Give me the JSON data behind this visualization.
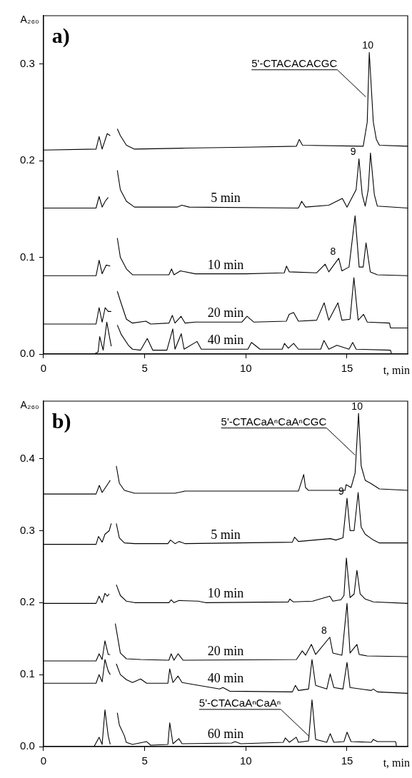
{
  "chart_data": [
    {
      "type": "line",
      "title": "a)",
      "xlabel": "t, min",
      "ylabel": "A₂₆₀",
      "xlim": [
        0,
        18
      ],
      "ylim": [
        0,
        0.35
      ],
      "xticks": [
        0,
        5,
        10,
        15
      ],
      "yticks": [
        {
          "value": 0,
          "label": "0.0"
        },
        0.1,
        0.2,
        0.3
      ],
      "grid": false,
      "legend": false,
      "marker": "none",
      "line_style": "solid",
      "annotations": [
        {
          "text": "5'-CTACACACGC",
          "x": 15.93,
          "y": 0.266
        },
        {
          "text": "10",
          "x": 16.1,
          "y": 0.312
        },
        {
          "text": "9",
          "x": 15.59,
          "y": 0.202
        },
        {
          "text": "8",
          "x": 14.59,
          "y": 0.099
        }
      ],
      "series": [
        {
          "color": "#000000",
          "x": [
            0,
            2.6,
            2.75,
            2.9,
            3.15,
            3.3,
            3.45,
            3.55,
            3.65,
            3.8,
            4.1,
            4.5,
            7,
            10,
            12.5,
            12.64,
            12.8,
            15.8,
            16.0,
            16.1,
            16.3,
            16.45,
            16.6,
            18
          ],
          "values": [
            0.211,
            0.212,
            0.225,
            0.212,
            0.228,
            0.226,
            null,
            null,
            0.233,
            0.226,
            0.216,
            0.212,
            0.213,
            0.214,
            0.215,
            0.222,
            0.216,
            0.215,
            0.24,
            0.312,
            0.24,
            0.222,
            0.216,
            0.215
          ]
        },
        {
          "name": "5 min",
          "color": "#000000",
          "x": [
            0,
            2.6,
            2.75,
            2.9,
            3.05,
            3.2,
            3.45,
            3.55,
            3.65,
            3.8,
            4.1,
            4.5,
            6.6,
            6.84,
            7.2,
            12.6,
            12.76,
            12.95,
            14.1,
            14.77,
            15.0,
            15.45,
            15.59,
            15.75,
            15.9,
            16.05,
            16.16,
            16.35,
            16.5,
            18
          ],
          "values": [
            0.151,
            0.151,
            0.163,
            0.152,
            0.158,
            0.162,
            null,
            null,
            0.19,
            0.17,
            0.158,
            0.152,
            0.152,
            0.154,
            0.152,
            0.151,
            0.158,
            0.152,
            0.154,
            0.161,
            0.152,
            0.17,
            0.202,
            0.165,
            0.153,
            0.17,
            0.208,
            0.165,
            0.153,
            0.151
          ]
        },
        {
          "name": "10 min",
          "color": "#000000",
          "x": [
            0,
            2.6,
            2.75,
            2.9,
            3.1,
            3.3,
            3.45,
            3.55,
            3.65,
            3.8,
            4.1,
            4.4,
            6.2,
            6.33,
            6.45,
            6.77,
            7.5,
            10,
            11.9,
            12.01,
            12.15,
            13.5,
            13.92,
            14.1,
            14.59,
            14.75,
            15.1,
            15.4,
            15.6,
            15.8,
            15.94,
            16.15,
            16.5,
            18
          ],
          "values": [
            0.081,
            0.081,
            0.097,
            0.083,
            0.092,
            0.091,
            null,
            null,
            0.12,
            0.1,
            0.088,
            0.082,
            0.082,
            0.088,
            0.082,
            0.086,
            0.083,
            0.083,
            0.084,
            0.091,
            0.085,
            0.084,
            0.093,
            0.085,
            0.099,
            0.086,
            0.09,
            0.143,
            0.09,
            0.09,
            0.115,
            0.085,
            0.082,
            0.081
          ]
        },
        {
          "name": "20 min",
          "color": "#000000",
          "x": [
            0,
            2.6,
            2.75,
            2.9,
            3.05,
            3.2,
            3.35,
            3.45,
            3.55,
            3.65,
            3.8,
            4.1,
            4.4,
            5.06,
            5.3,
            6.2,
            6.37,
            6.5,
            6.8,
            7.0,
            7.5,
            9.8,
            10.06,
            10.4,
            12.0,
            12.14,
            12.36,
            12.6,
            13.5,
            13.87,
            14.1,
            14.55,
            14.75,
            15.15,
            15.34,
            15.55,
            15.82,
            16.0,
            17.1,
            17.15,
            18
          ],
          "values": [
            0.031,
            0.031,
            0.048,
            0.033,
            0.048,
            0.044,
            0.044,
            null,
            null,
            0.065,
            0.055,
            0.036,
            0.032,
            0.034,
            0.031,
            0.032,
            0.04,
            0.032,
            0.039,
            0.032,
            0.033,
            0.033,
            0.039,
            0.033,
            0.034,
            0.041,
            0.043,
            0.034,
            0.035,
            0.053,
            0.035,
            0.053,
            0.035,
            0.036,
            0.079,
            0.035,
            0.041,
            0.033,
            0.032,
            0.027,
            0.027
          ]
        },
        {
          "name": "40 min",
          "color": "#000000",
          "x": [
            0,
            2.5,
            2.7,
            2.78,
            2.95,
            3.13,
            3.35,
            3.45,
            3.55,
            3.65,
            3.85,
            4.2,
            4.4,
            4.8,
            5.13,
            5.4,
            6.1,
            6.39,
            6.5,
            6.81,
            6.95,
            7.59,
            7.8,
            10.1,
            10.28,
            10.7,
            11.8,
            11.91,
            12.1,
            12.36,
            12.6,
            13.7,
            13.86,
            14.1,
            14.5,
            15.1,
            15.28,
            15.45,
            17.15,
            17.2,
            18
          ],
          "values": [
            0,
            0,
            0.002,
            0.018,
            0.004,
            0.033,
            0.008,
            null,
            null,
            0.03,
            0.02,
            0.009,
            0.005,
            0.004,
            0.016,
            0.004,
            0.004,
            0.026,
            0.005,
            0.021,
            0.005,
            0.013,
            0.005,
            0.005,
            0.012,
            0.005,
            0.005,
            0.011,
            0.006,
            0.011,
            0.005,
            0.005,
            0.014,
            0.005,
            0.009,
            0.005,
            0.012,
            0.005,
            0.004,
            0,
            0
          ]
        }
      ]
    },
    {
      "type": "line",
      "title": "b)",
      "xlabel": "t, min",
      "ylabel": "A₂₆₀",
      "xlim": [
        0,
        18
      ],
      "ylim": [
        0,
        0.48
      ],
      "xticks": [
        0,
        5,
        10,
        15
      ],
      "yticks": [
        {
          "value": 0,
          "label": "0.0"
        },
        0.1,
        0.2,
        0.3,
        0.4
      ],
      "grid": false,
      "legend": false,
      "marker": "none",
      "line_style": "solid",
      "annotations": [
        {
          "text": "5'-CTACaAⁿCaAⁿCGC",
          "x": 15.4,
          "y": 0.405
        },
        {
          "text": "5'-CTACaAⁿCaAⁿ",
          "x": 13.14,
          "y": 0.014
        },
        {
          "text": "10",
          "x": 15.57,
          "y": 0.463
        },
        {
          "text": "9",
          "x": 15.0,
          "y": 0.345
        },
        {
          "text": "8",
          "x": 14.15,
          "y": 0.152
        }
      ],
      "series": [
        {
          "color": "#000000",
          "x": [
            0,
            2.6,
            2.76,
            2.9,
            3.23,
            3.3,
            3.4,
            3.5,
            3.6,
            3.75,
            4.0,
            4.5,
            6.5,
            7.0,
            12.6,
            12.86,
            12.95,
            13.1,
            14.9,
            14.96,
            15.2,
            15.4,
            15.57,
            15.7,
            15.9,
            16.16,
            16.6,
            18
          ],
          "values": [
            0.351,
            0.351,
            0.363,
            0.353,
            0.367,
            0.37,
            null,
            null,
            0.39,
            0.366,
            0.356,
            0.352,
            0.352,
            0.355,
            0.355,
            0.378,
            0.36,
            0.356,
            0.356,
            0.364,
            0.36,
            0.38,
            0.463,
            0.39,
            0.37,
            0.366,
            0.358,
            0.356
          ]
        },
        {
          "name": "5 min",
          "color": "#000000",
          "x": [
            0,
            2.6,
            2.72,
            2.9,
            3.04,
            3.25,
            3.35,
            3.4,
            3.5,
            3.6,
            3.75,
            4.0,
            4.5,
            6.15,
            6.28,
            6.5,
            6.7,
            7.0,
            12.3,
            12.41,
            12.6,
            14.17,
            14.45,
            14.8,
            15.0,
            15.15,
            15.35,
            15.55,
            15.7,
            15.9,
            16.3,
            16.6,
            18
          ],
          "values": [
            0.281,
            0.281,
            0.292,
            0.284,
            0.295,
            0.3,
            0.31,
            null,
            null,
            0.31,
            0.29,
            0.283,
            0.282,
            0.282,
            0.287,
            0.282,
            0.285,
            0.282,
            0.284,
            0.291,
            0.285,
            0.289,
            0.287,
            0.29,
            0.345,
            0.3,
            0.3,
            0.353,
            0.305,
            0.295,
            0.287,
            0.283,
            0.283
          ]
        },
        {
          "name": "10 min",
          "color": "#000000",
          "x": [
            0,
            2.6,
            2.75,
            2.9,
            3.04,
            3.15,
            3.25,
            3.4,
            3.5,
            3.6,
            3.8,
            4.1,
            4.5,
            6.2,
            6.31,
            6.45,
            6.7,
            7.65,
            8.0,
            12.1,
            12.17,
            12.35,
            13.3,
            14.15,
            14.3,
            14.7,
            14.85,
            14.97,
            15.15,
            15.35,
            15.49,
            15.65,
            15.9,
            16.3,
            18
          ],
          "values": [
            0.199,
            0.199,
            0.209,
            0.2,
            0.213,
            0.209,
            0.212,
            null,
            null,
            0.225,
            0.21,
            0.202,
            0.2,
            0.2,
            0.204,
            0.2,
            0.203,
            0.202,
            0.2,
            0.201,
            0.205,
            0.201,
            0.202,
            0.209,
            0.202,
            0.204,
            0.21,
            0.262,
            0.207,
            0.212,
            0.245,
            0.212,
            0.205,
            0.201,
            0.199
          ]
        },
        {
          "name": "20 min",
          "color": "#000000",
          "x": [
            0,
            2.6,
            2.75,
            2.9,
            3.04,
            3.2,
            3.3,
            3.4,
            3.5,
            3.55,
            3.8,
            4.1,
            4.8,
            6.2,
            6.31,
            6.45,
            6.65,
            6.9,
            12.5,
            12.79,
            12.95,
            13.24,
            13.45,
            14.15,
            14.3,
            14.75,
            15.0,
            15.15,
            15.49,
            15.6,
            16.0,
            18
          ],
          "values": [
            0.119,
            0.119,
            0.129,
            0.121,
            0.147,
            0.128,
            0.128,
            null,
            null,
            0.171,
            0.13,
            0.122,
            0.121,
            0.12,
            0.129,
            0.12,
            0.129,
            0.12,
            0.121,
            0.133,
            0.127,
            0.142,
            0.128,
            0.152,
            0.13,
            0.127,
            0.199,
            0.13,
            0.142,
            0.128,
            0.126,
            0.125
          ]
        },
        {
          "name": "40 min",
          "color": "#000000",
          "x": [
            0,
            2.6,
            2.75,
            2.9,
            3.04,
            3.2,
            3.3,
            3.4,
            3.5,
            3.6,
            3.8,
            4.1,
            4.4,
            4.8,
            5.1,
            6.15,
            6.24,
            6.4,
            6.65,
            6.85,
            8.7,
            8.87,
            9.2,
            12.3,
            12.45,
            12.6,
            13.1,
            13.27,
            13.45,
            14.0,
            14.17,
            14.35,
            14.8,
            15.0,
            15.15,
            16.2,
            16.3,
            16.5,
            18
          ],
          "values": [
            0.088,
            0.088,
            0.1,
            0.09,
            0.121,
            0.105,
            0.1,
            null,
            null,
            0.115,
            0.1,
            0.093,
            0.089,
            0.094,
            0.088,
            0.088,
            0.108,
            0.089,
            0.098,
            0.089,
            0.08,
            0.082,
            0.077,
            0.076,
            0.085,
            0.078,
            0.08,
            0.121,
            0.085,
            0.08,
            0.101,
            0.082,
            0.08,
            0.117,
            0.082,
            0.078,
            0.08,
            0.076,
            0.074
          ]
        },
        {
          "name": "60 min",
          "color": "#000000",
          "x": [
            0,
            2.5,
            2.75,
            2.9,
            3.04,
            3.2,
            3.3,
            3.4,
            3.55,
            3.65,
            3.75,
            4.0,
            4.09,
            4.4,
            5.09,
            5.3,
            6.15,
            6.24,
            6.4,
            6.69,
            6.85,
            9.3,
            9.47,
            9.75,
            11.85,
            11.95,
            12.15,
            12.49,
            12.6,
            13.1,
            13.27,
            13.45,
            14.0,
            14.17,
            14.35,
            14.85,
            15.0,
            15.2,
            16.2,
            16.3,
            16.5,
            17.4,
            17.45,
            18
          ],
          "values": [
            0,
            0,
            0.013,
            0.003,
            0.051,
            0.015,
            0.003,
            null,
            null,
            0.047,
            0.03,
            0.015,
            0.006,
            0.003,
            0.007,
            0.002,
            0.003,
            0.033,
            0.004,
            0.011,
            0.004,
            0.005,
            0.007,
            0.004,
            0.006,
            0.012,
            0.006,
            0.013,
            0.006,
            0.008,
            0.065,
            0.01,
            0.006,
            0.018,
            0.006,
            0.007,
            0.02,
            0.007,
            0.006,
            0.01,
            0.007,
            0.007,
            0,
            0
          ]
        }
      ]
    }
  ]
}
